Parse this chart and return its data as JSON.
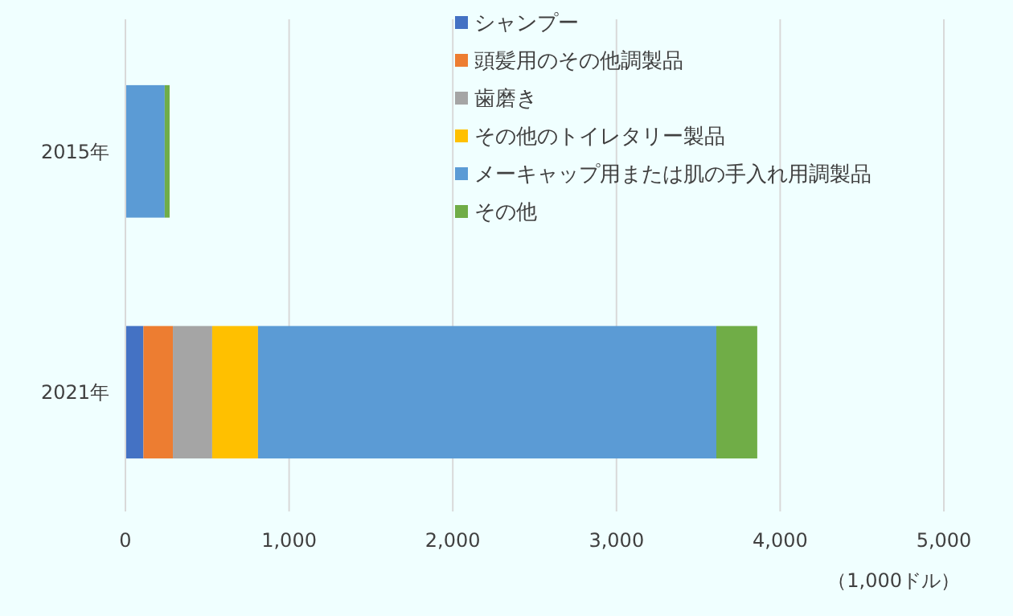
{
  "chart_data": {
    "type": "bar",
    "orientation": "horizontal",
    "stacked": true,
    "categories": [
      "2015年",
      "2021年"
    ],
    "series": [
      {
        "name": "シャンプー",
        "color": "#4472c4",
        "values": [
          0,
          110
        ]
      },
      {
        "name": "頭髪用のその他調製品",
        "color": "#ed7d31",
        "values": [
          0,
          180
        ]
      },
      {
        "name": "歯磨き",
        "color": "#a5a5a5",
        "values": [
          0,
          240
        ]
      },
      {
        "name": "その他のトイレタリー製品",
        "color": "#ffc000",
        "values": [
          0,
          280
        ]
      },
      {
        "name": "メーキャップ用または肌の手入れ用調製品",
        "color": "#5b9bd5",
        "values": [
          240,
          2800
        ]
      },
      {
        "name": "その他",
        "color": "#70ad47",
        "values": [
          30,
          250
        ]
      }
    ],
    "xlim": [
      0,
      5000
    ],
    "xticks": [
      {
        "value": 0,
        "label": "0"
      },
      {
        "value": 1000,
        "label": "1,000"
      },
      {
        "value": 2000,
        "label": "2,000"
      },
      {
        "value": 3000,
        "label": "3,000"
      },
      {
        "value": 4000,
        "label": "4,000"
      },
      {
        "value": 5000,
        "label": "5,000"
      }
    ],
    "xlabel": "（1,000ドル）",
    "grid": "x",
    "legend": "top right"
  }
}
